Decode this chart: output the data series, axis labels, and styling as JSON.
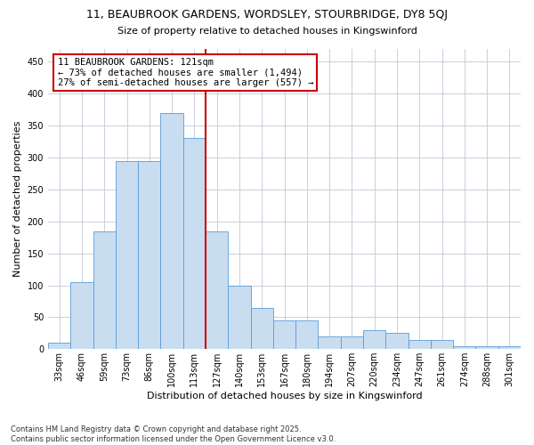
{
  "title": "11, BEAUBROOK GARDENS, WORDSLEY, STOURBRIDGE, DY8 5QJ",
  "subtitle": "Size of property relative to detached houses in Kingswinford",
  "xlabel": "Distribution of detached houses by size in Kingswinford",
  "ylabel": "Number of detached properties",
  "categories": [
    "33sqm",
    "46sqm",
    "59sqm",
    "73sqm",
    "86sqm",
    "100sqm",
    "113sqm",
    "127sqm",
    "140sqm",
    "153sqm",
    "167sqm",
    "180sqm",
    "194sqm",
    "207sqm",
    "220sqm",
    "234sqm",
    "247sqm",
    "261sqm",
    "274sqm",
    "288sqm",
    "301sqm"
  ],
  "values": [
    10,
    105,
    185,
    295,
    295,
    370,
    330,
    185,
    100,
    65,
    45,
    45,
    20,
    20,
    30,
    25,
    15,
    15,
    5,
    5,
    5
  ],
  "bar_color": "#c9ddf0",
  "bar_edge_color": "#5b9bd5",
  "vline_color": "#cc0000",
  "annotation_text": "11 BEAUBROOK GARDENS: 121sqm\n← 73% of detached houses are smaller (1,494)\n27% of semi-detached houses are larger (557) →",
  "annotation_box_color": "#ffffff",
  "annotation_border_color": "#cc0000",
  "footer": "Contains HM Land Registry data © Crown copyright and database right 2025.\nContains public sector information licensed under the Open Government Licence v3.0.",
  "ylim": [
    0,
    470
  ],
  "yticks": [
    0,
    50,
    100,
    150,
    200,
    250,
    300,
    350,
    400,
    450
  ],
  "background_color": "#ffffff",
  "grid_color": "#c8d0dc",
  "title_fontsize": 9,
  "subtitle_fontsize": 8,
  "ylabel_fontsize": 8,
  "xlabel_fontsize": 8,
  "tick_fontsize": 7,
  "footer_fontsize": 6,
  "annotation_fontsize": 7.5
}
